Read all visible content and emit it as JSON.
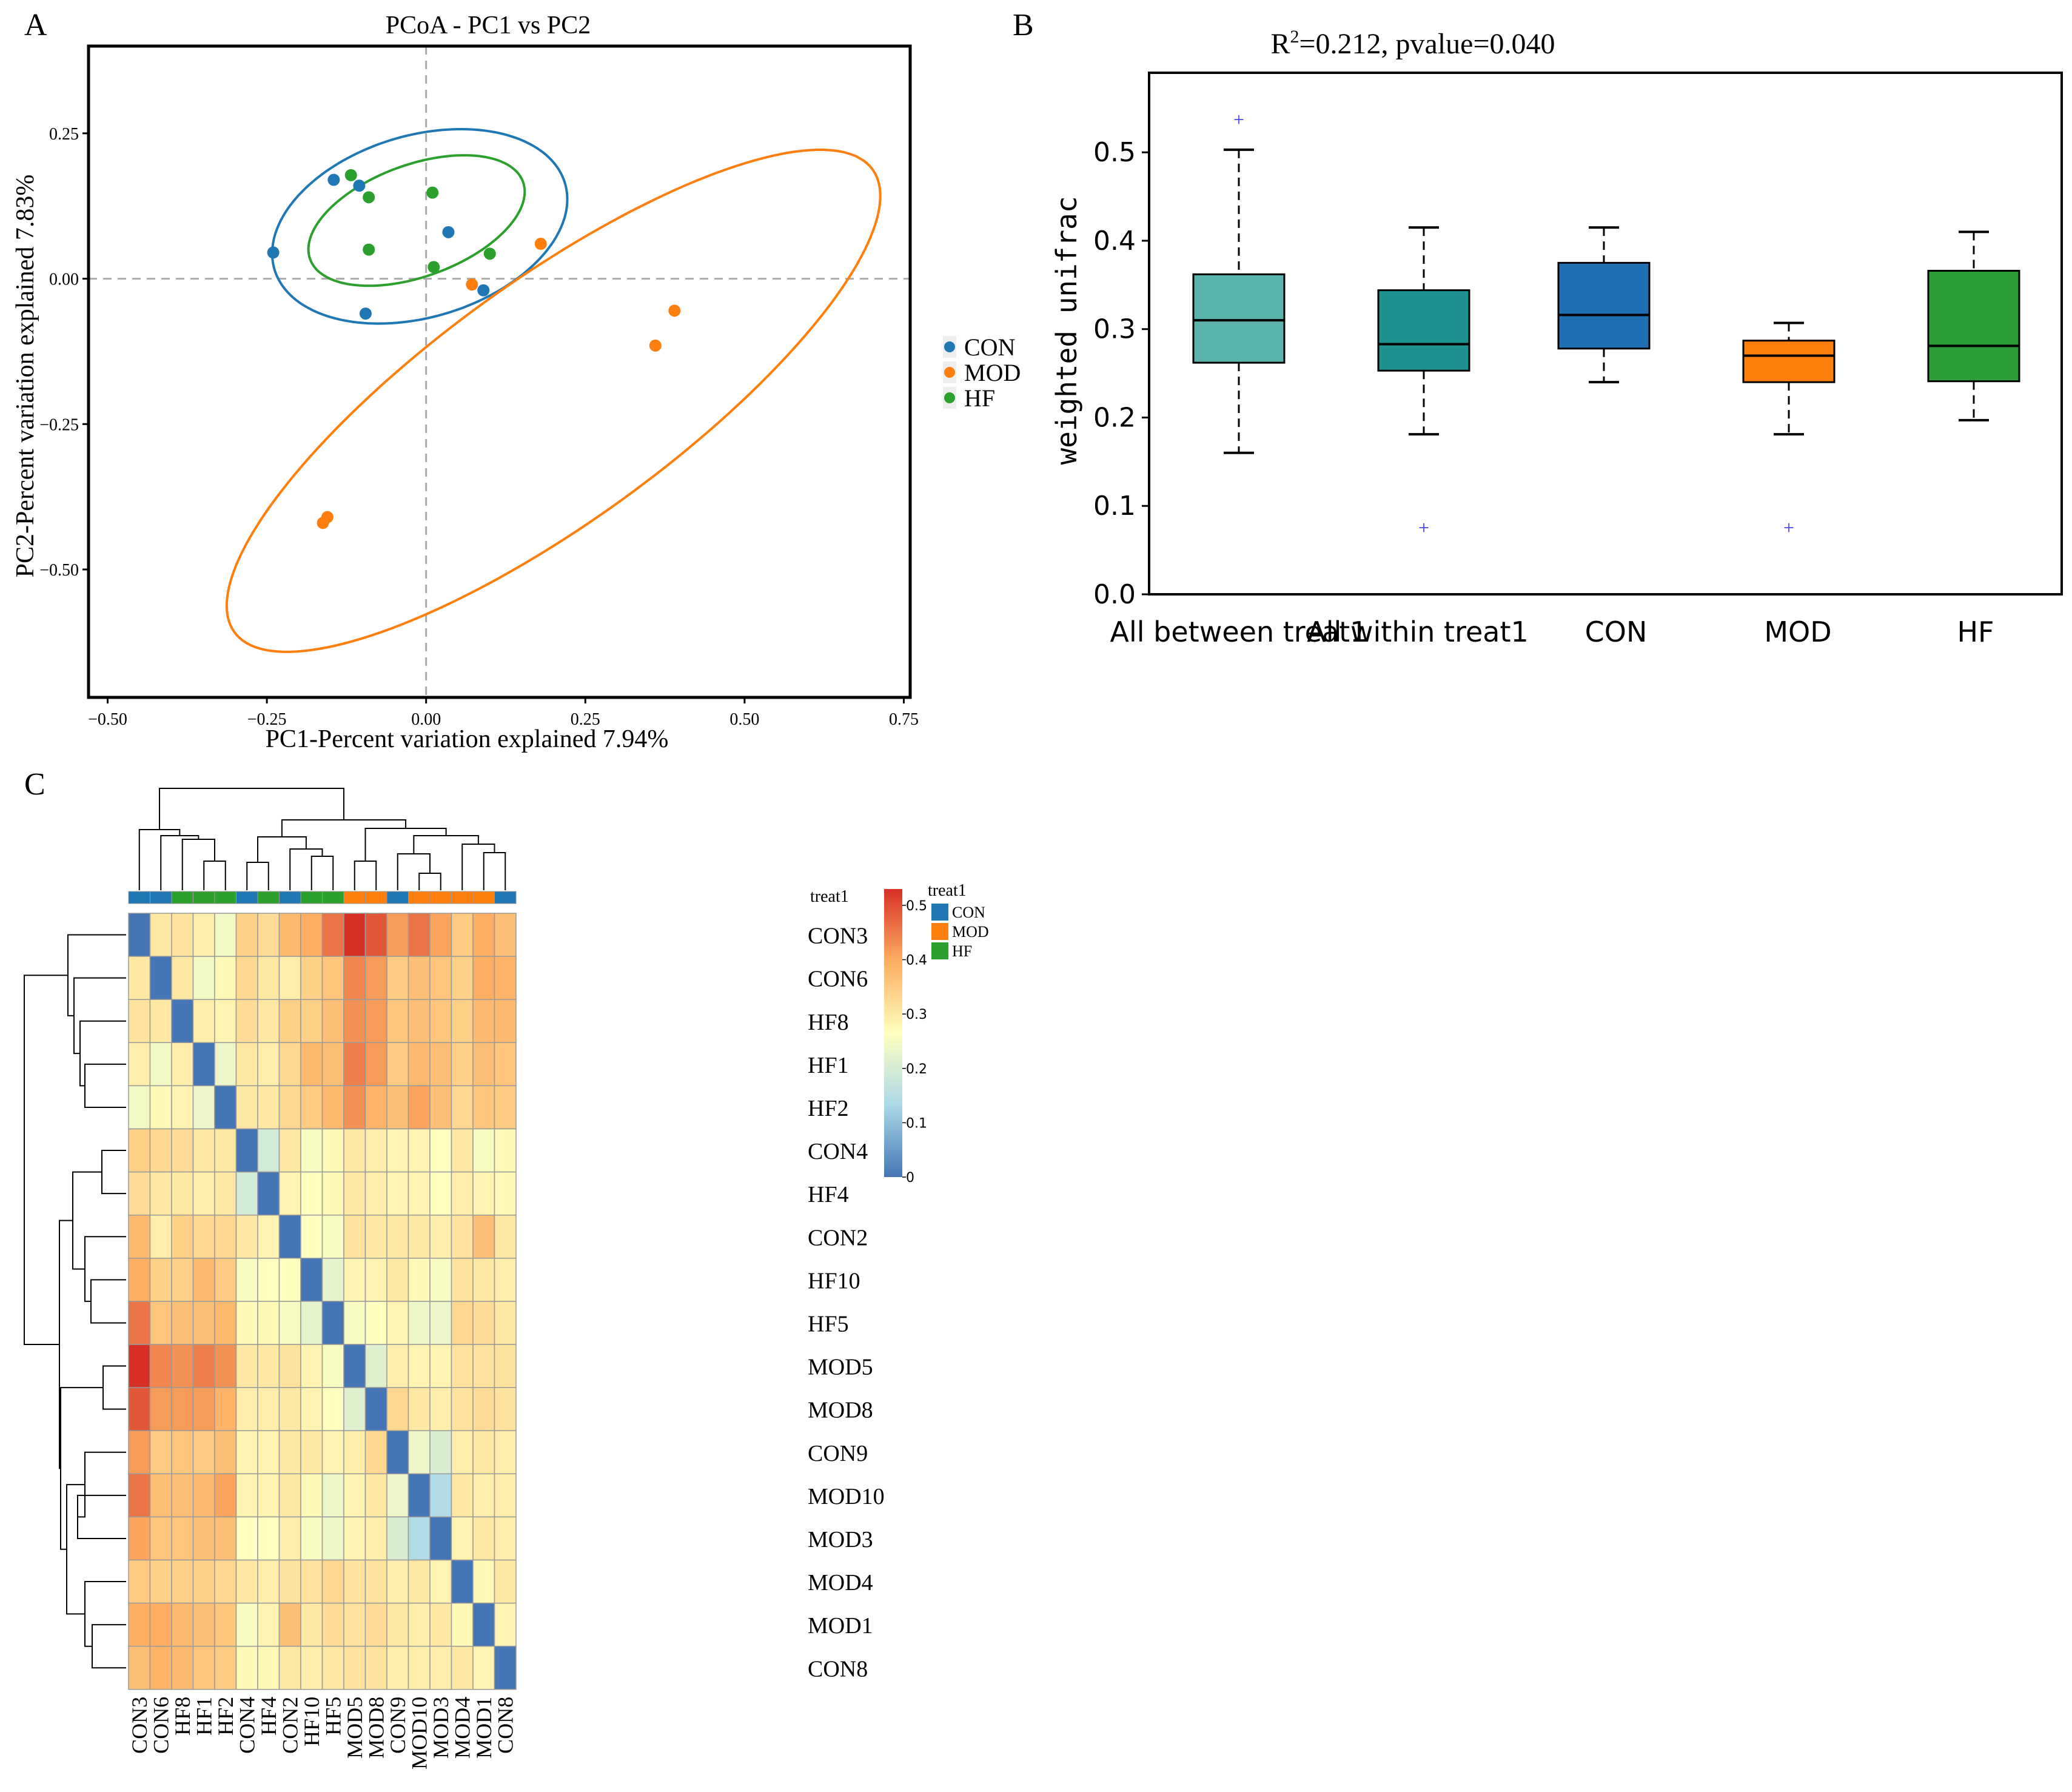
{
  "panel_labels": {
    "a": "A",
    "b": "B",
    "c": "C"
  },
  "colors": {
    "CON": "#1f77b4",
    "MOD": "#ff7f0e",
    "HF": "#2ca02c",
    "box_all_between": "#5ab4ac",
    "box_all_within": "#1e9290",
    "box_con": "#1f6fb2",
    "box_mod": "#ff7f0e",
    "box_hf": "#2e9e3a",
    "outlier": "#3b3bf2",
    "heat_low": "#4575b4",
    "heat_mid": "#ffffbf",
    "heat_high": "#d73027"
  },
  "chart_data": [
    {
      "panel": "A",
      "type": "scatter",
      "title": "PCoA - PC1 vs PC2",
      "xlabel": "PC1-Percent variation explained 7.94%",
      "ylabel": "PC2-Percent variation explained 7.83%",
      "xlim": [
        -0.53,
        0.76
      ],
      "ylim": [
        -0.72,
        0.4
      ],
      "xticks": [
        -0.5,
        -0.25,
        0.0,
        0.25,
        0.5,
        0.75
      ],
      "xtick_labels": [
        "−0.50",
        "−0.25",
        "0.00",
        "0.25",
        "0.50",
        "0.75"
      ],
      "yticks": [
        0.25,
        0.0,
        -0.25,
        -0.5
      ],
      "ytick_labels": [
        "0.25",
        "0.00",
        "−0.25",
        "−0.50"
      ],
      "legend": [
        "CON",
        "MOD",
        "HF"
      ],
      "legend_position": "right",
      "series": [
        {
          "name": "CON",
          "points": [
            [
              -0.24,
              0.045
            ],
            [
              -0.145,
              0.17
            ],
            [
              -0.105,
              0.16
            ],
            [
              -0.095,
              -0.06
            ],
            [
              0.035,
              0.08
            ],
            [
              0.09,
              -0.02
            ]
          ]
        },
        {
          "name": "MOD",
          "points": [
            [
              -0.155,
              -0.41
            ],
            [
              -0.162,
              -0.42
            ],
            [
              0.072,
              -0.01
            ],
            [
              0.18,
              0.06
            ],
            [
              0.36,
              -0.115
            ],
            [
              0.39,
              -0.055
            ]
          ]
        },
        {
          "name": "HF",
          "points": [
            [
              -0.118,
              0.178
            ],
            [
              -0.09,
              0.14
            ],
            [
              -0.09,
              0.05
            ],
            [
              0.01,
              0.148
            ],
            [
              0.012,
              0.02
            ],
            [
              0.1,
              0.043
            ]
          ]
        }
      ],
      "ellipses": [
        {
          "name": "CON",
          "center": [
            -0.01,
            0.09
          ],
          "rx": 0.24,
          "ry": 0.155,
          "angle_deg": 20
        },
        {
          "name": "HF",
          "center": [
            -0.015,
            0.1
          ],
          "rx": 0.18,
          "ry": 0.095,
          "angle_deg": 23
        },
        {
          "name": "MOD",
          "center": [
            0.2,
            -0.21
          ],
          "rx": 0.64,
          "ry": 0.2,
          "angle_deg": 39
        }
      ]
    },
    {
      "panel": "B",
      "type": "box",
      "title_parts": {
        "r": "R",
        "sup": "2",
        "rest": "=0.212, pvalue=0.040"
      },
      "ylabel": "weighted unifrac",
      "ylim": [
        0.0,
        0.59
      ],
      "yticks": [
        0.0,
        0.1,
        0.2,
        0.3,
        0.4,
        0.5
      ],
      "ytick_labels": [
        "0.0",
        "0.1",
        "0.2",
        "0.3",
        "0.4",
        "0.5"
      ],
      "categories": [
        "All between treat1",
        "All within treat1",
        "CON",
        "MOD",
        "HF"
      ],
      "boxes": [
        {
          "name": "All between treat1",
          "min": 0.16,
          "q1": 0.262,
          "median": 0.31,
          "q3": 0.362,
          "max": 0.503,
          "outliers": [
            0.538
          ]
        },
        {
          "name": "All within treat1",
          "min": 0.181,
          "q1": 0.253,
          "median": 0.283,
          "q3": 0.344,
          "max": 0.415,
          "outliers": [
            0.076
          ]
        },
        {
          "name": "CON",
          "min": 0.24,
          "q1": 0.278,
          "median": 0.316,
          "q3": 0.375,
          "max": 0.415,
          "outliers": []
        },
        {
          "name": "MOD",
          "min": 0.181,
          "q1": 0.24,
          "median": 0.27,
          "q3": 0.287,
          "max": 0.307,
          "outliers": [
            0.076
          ]
        },
        {
          "name": "HF",
          "min": 0.197,
          "q1": 0.241,
          "median": 0.281,
          "q3": 0.366,
          "max": 0.41,
          "outliers": []
        }
      ]
    },
    {
      "panel": "C",
      "type": "heatmap",
      "legend_title": "treat1",
      "annotation_label": "treat1",
      "legend": [
        "CON",
        "MOD",
        "HF"
      ],
      "colorbar_ticks": [
        0.5,
        0.4,
        0.3,
        0.2,
        0.1,
        0
      ],
      "colorbar_tick_labels": [
        "0.5",
        "0.4",
        "0.3",
        "0.2",
        "0.1",
        "0"
      ],
      "colorbar_range": [
        0,
        0.53
      ],
      "labels": [
        "CON3",
        "CON6",
        "HF8",
        "HF1",
        "HF2",
        "CON4",
        "HF4",
        "CON2",
        "HF10",
        "HF5",
        "MOD5",
        "MOD8",
        "CON9",
        "MOD10",
        "MOD3",
        "MOD4",
        "MOD1",
        "CON8"
      ],
      "groups": [
        "CON",
        "CON",
        "HF",
        "HF",
        "HF",
        "CON",
        "HF",
        "CON",
        "HF",
        "HF",
        "MOD",
        "MOD",
        "CON",
        "MOD",
        "MOD",
        "MOD",
        "MOD",
        "CON"
      ],
      "matrix": [
        [
          0,
          0.3,
          0.31,
          0.29,
          0.24,
          0.34,
          0.32,
          0.38,
          0.4,
          0.46,
          0.53,
          0.49,
          0.42,
          0.46,
          0.41,
          0.35,
          0.4,
          0.37
        ],
        [
          0.3,
          0,
          0.3,
          0.24,
          0.27,
          0.33,
          0.3,
          0.29,
          0.34,
          0.36,
          0.44,
          0.42,
          0.35,
          0.37,
          0.36,
          0.34,
          0.4,
          0.39
        ],
        [
          0.31,
          0.3,
          0,
          0.29,
          0.28,
          0.32,
          0.3,
          0.34,
          0.34,
          0.37,
          0.43,
          0.42,
          0.36,
          0.37,
          0.36,
          0.34,
          0.38,
          0.38
        ],
        [
          0.29,
          0.24,
          0.29,
          0,
          0.23,
          0.3,
          0.29,
          0.33,
          0.38,
          0.37,
          0.45,
          0.42,
          0.35,
          0.38,
          0.37,
          0.34,
          0.37,
          0.36
        ],
        [
          0.24,
          0.27,
          0.28,
          0.23,
          0,
          0.3,
          0.3,
          0.33,
          0.35,
          0.38,
          0.43,
          0.39,
          0.37,
          0.41,
          0.37,
          0.33,
          0.36,
          0.35
        ],
        [
          0.34,
          0.33,
          0.32,
          0.3,
          0.3,
          0,
          0.19,
          0.3,
          0.25,
          0.27,
          0.3,
          0.29,
          0.28,
          0.28,
          0.26,
          0.3,
          0.25,
          0.27
        ],
        [
          0.32,
          0.3,
          0.3,
          0.29,
          0.3,
          0.19,
          0,
          0.28,
          0.26,
          0.27,
          0.3,
          0.29,
          0.28,
          0.28,
          0.26,
          0.29,
          0.28,
          0.27
        ],
        [
          0.38,
          0.29,
          0.34,
          0.33,
          0.33,
          0.3,
          0.28,
          0,
          0.26,
          0.25,
          0.31,
          0.3,
          0.3,
          0.3,
          0.29,
          0.31,
          0.37,
          0.3
        ],
        [
          0.4,
          0.34,
          0.34,
          0.38,
          0.35,
          0.25,
          0.26,
          0.26,
          0,
          0.22,
          0.28,
          0.28,
          0.3,
          0.27,
          0.25,
          0.31,
          0.3,
          0.29
        ],
        [
          0.46,
          0.36,
          0.37,
          0.37,
          0.38,
          0.27,
          0.27,
          0.25,
          0.22,
          0,
          0.25,
          0.26,
          0.28,
          0.23,
          0.23,
          0.33,
          0.32,
          0.3
        ],
        [
          0.53,
          0.44,
          0.43,
          0.45,
          0.43,
          0.3,
          0.3,
          0.31,
          0.28,
          0.25,
          0,
          0.21,
          0.29,
          0.28,
          0.28,
          0.31,
          0.31,
          0.31
        ],
        [
          0.49,
          0.42,
          0.42,
          0.42,
          0.39,
          0.29,
          0.29,
          0.3,
          0.28,
          0.26,
          0.21,
          0,
          0.33,
          0.3,
          0.29,
          0.31,
          0.32,
          0.31
        ],
        [
          0.42,
          0.35,
          0.36,
          0.35,
          0.37,
          0.28,
          0.28,
          0.3,
          0.3,
          0.28,
          0.29,
          0.33,
          0,
          0.23,
          0.2,
          0.29,
          0.3,
          0.29
        ],
        [
          0.46,
          0.37,
          0.37,
          0.38,
          0.41,
          0.28,
          0.28,
          0.3,
          0.27,
          0.23,
          0.28,
          0.3,
          0.23,
          0,
          0.14,
          0.3,
          0.29,
          0.29
        ],
        [
          0.41,
          0.36,
          0.36,
          0.37,
          0.37,
          0.26,
          0.26,
          0.29,
          0.25,
          0.23,
          0.28,
          0.29,
          0.2,
          0.14,
          0,
          0.28,
          0.3,
          0.29
        ],
        [
          0.35,
          0.34,
          0.34,
          0.34,
          0.33,
          0.3,
          0.29,
          0.31,
          0.31,
          0.33,
          0.31,
          0.31,
          0.29,
          0.3,
          0.28,
          0,
          0.27,
          0.3
        ],
        [
          0.4,
          0.4,
          0.38,
          0.37,
          0.36,
          0.25,
          0.28,
          0.37,
          0.3,
          0.32,
          0.31,
          0.32,
          0.3,
          0.29,
          0.3,
          0.27,
          0,
          0.28
        ],
        [
          0.37,
          0.39,
          0.38,
          0.36,
          0.35,
          0.27,
          0.27,
          0.3,
          0.29,
          0.3,
          0.31,
          0.31,
          0.29,
          0.29,
          0.29,
          0.3,
          0.28,
          0
        ]
      ]
    }
  ]
}
